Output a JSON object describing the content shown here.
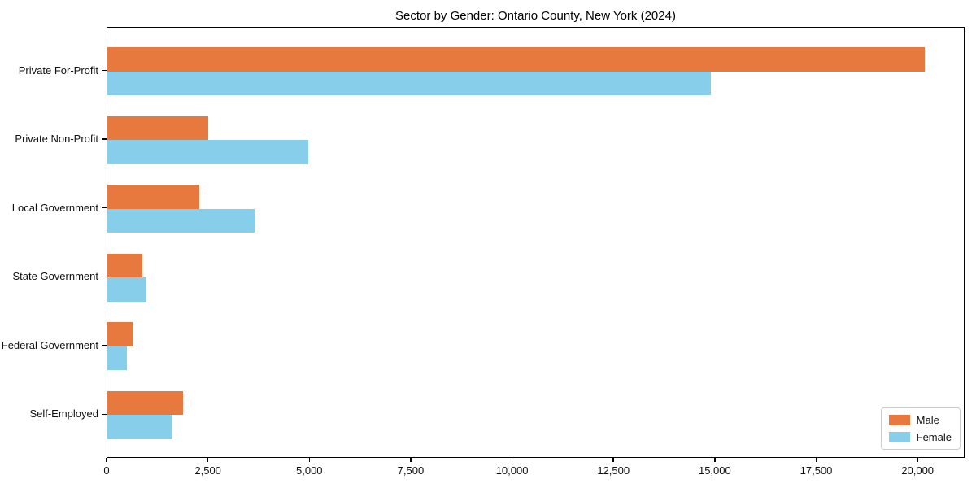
{
  "chart_data": {
    "type": "bar",
    "orientation": "horizontal",
    "title": "Sector by Gender: Ontario County, New York (2024)",
    "categories": [
      "Private For-Profit",
      "Private Non-Profit",
      "Local Government",
      "State Government",
      "Federal Government",
      "Self-Employed"
    ],
    "series": [
      {
        "name": "Male",
        "color": "#e8793e",
        "values": [
          20150,
          2490,
          2270,
          860,
          620,
          1870
        ]
      },
      {
        "name": "Female",
        "color": "#87ceeb",
        "values": [
          14890,
          4960,
          3630,
          960,
          480,
          1590
        ]
      }
    ],
    "xlabel": "",
    "ylabel": "",
    "xlim": [
      0,
      21160
    ],
    "x_tick_values": [
      0,
      2500,
      5000,
      7500,
      10000,
      12500,
      15000,
      17500,
      20000
    ],
    "x_tick_labels": [
      "0",
      "2,500",
      "5,000",
      "7,500",
      "10,000",
      "12,500",
      "15,000",
      "17,500",
      "20,000"
    ],
    "grid": false,
    "legend_position": "lower right",
    "background_color": "#ffffff",
    "border_color": "#000000"
  }
}
